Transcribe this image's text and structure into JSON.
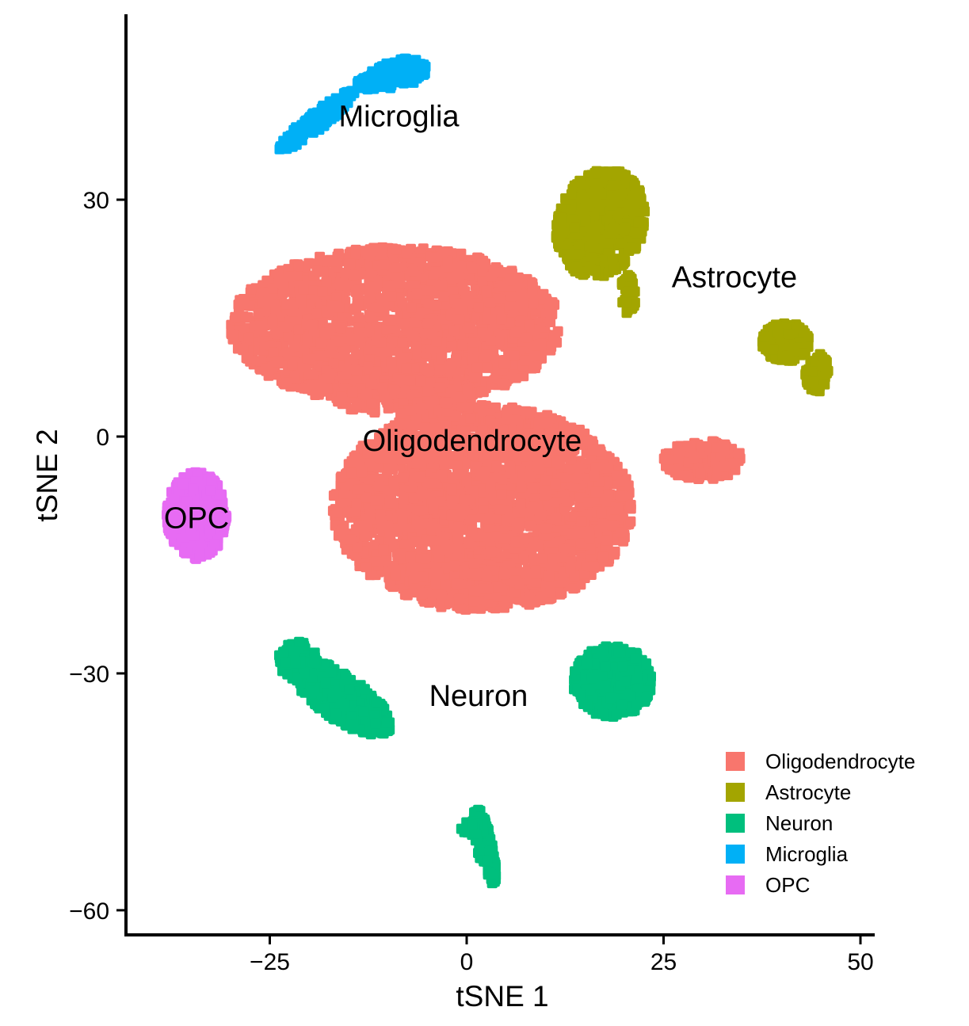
{
  "chart_data": {
    "type": "scatter",
    "xlabel": "tSNE 1",
    "ylabel": "tSNE 2",
    "xlim": [
      -43.5,
      51.5
    ],
    "ylim": [
      -63,
      54
    ],
    "x_ticks": [
      -25,
      0,
      25,
      50
    ],
    "y_ticks": [
      -60,
      -30,
      0,
      30
    ],
    "x_tick_labels": [
      "−25",
      "0",
      "25",
      "50"
    ],
    "y_tick_labels": [
      "−60",
      "−30",
      "0",
      "30"
    ],
    "grid": false,
    "legend_position": "bottom-right",
    "series": [
      {
        "name": "Oligodendrocyte",
        "color": "#F8766D",
        "regions": [
          {
            "cx": -9,
            "cy": 14,
            "rx": 21,
            "ry": 10,
            "n": 2000,
            "angle": 0
          },
          {
            "cx": 2,
            "cy": -9,
            "rx": 19,
            "ry": 13,
            "n": 2500,
            "angle": 0
          },
          {
            "cx": 30,
            "cy": -3,
            "rx": 5,
            "ry": 2.5,
            "n": 180,
            "angle": 0
          },
          {
            "cx": -8,
            "cy": 5,
            "rx": 9,
            "ry": 2.5,
            "n": 180,
            "angle": 0
          },
          {
            "cx": 0,
            "cy": -19,
            "rx": 7,
            "ry": 3,
            "n": 200,
            "angle": 0
          }
        ],
        "label": {
          "text": "Oligodendrocyte",
          "x": 0.7,
          "y": -0.5
        }
      },
      {
        "name": "Astrocyte",
        "color": "#A3A500",
        "regions": [
          {
            "cx": 17,
            "cy": 27,
            "rx": 5.5,
            "ry": 7,
            "n": 600,
            "angle": -20
          },
          {
            "cx": 20.5,
            "cy": 18,
            "rx": 1,
            "ry": 2.5,
            "n": 50,
            "angle": 0
          },
          {
            "cx": 40.5,
            "cy": 12,
            "rx": 3,
            "ry": 2.5,
            "n": 200,
            "angle": 0
          },
          {
            "cx": 44.5,
            "cy": 8,
            "rx": 1.5,
            "ry": 2.5,
            "n": 80,
            "angle": 0
          }
        ],
        "label": {
          "text": "Astrocyte",
          "x": 34,
          "y": 20.2
        }
      },
      {
        "name": "Neuron",
        "color": "#00BF7D",
        "regions": [
          {
            "cx": -16,
            "cy": -33,
            "rx": 7.5,
            "ry": 2.8,
            "n": 400,
            "angle": -35
          },
          {
            "cx": -21.5,
            "cy": -28.5,
            "rx": 2.5,
            "ry": 2.5,
            "n": 80,
            "angle": 0
          },
          {
            "cx": 18.5,
            "cy": -31,
            "rx": 5,
            "ry": 4.5,
            "n": 450,
            "angle": 0
          },
          {
            "cx": 2.3,
            "cy": -52,
            "rx": 1,
            "ry": 5,
            "n": 120,
            "angle": 12
          },
          {
            "cx": 0.5,
            "cy": -49.5,
            "rx": 1.2,
            "ry": 1,
            "n": 30,
            "angle": 0
          }
        ],
        "label": {
          "text": "Neuron",
          "x": 1.5,
          "y": -32.8
        }
      },
      {
        "name": "Microglia",
        "color": "#00B0F6",
        "regions": [
          {
            "cx": -19,
            "cy": 40,
            "rx": 6,
            "ry": 1.1,
            "n": 160,
            "angle": 38
          },
          {
            "cx": -11,
            "cy": 45.5,
            "rx": 3.2,
            "ry": 1.2,
            "n": 100,
            "angle": 22
          },
          {
            "cx": -8.5,
            "cy": 46,
            "rx": 3.5,
            "ry": 1.8,
            "n": 120,
            "angle": 15
          }
        ],
        "label": {
          "text": "Microglia",
          "x": -8.6,
          "y": 40.6
        }
      },
      {
        "name": "OPC",
        "color": "#E76BF3",
        "regions": [
          {
            "cx": -34.3,
            "cy": -10,
            "rx": 3.8,
            "ry": 5.5,
            "n": 500,
            "angle": 0
          }
        ],
        "label": {
          "text": "OPC",
          "x": -34.3,
          "y": -10.3
        }
      }
    ]
  }
}
